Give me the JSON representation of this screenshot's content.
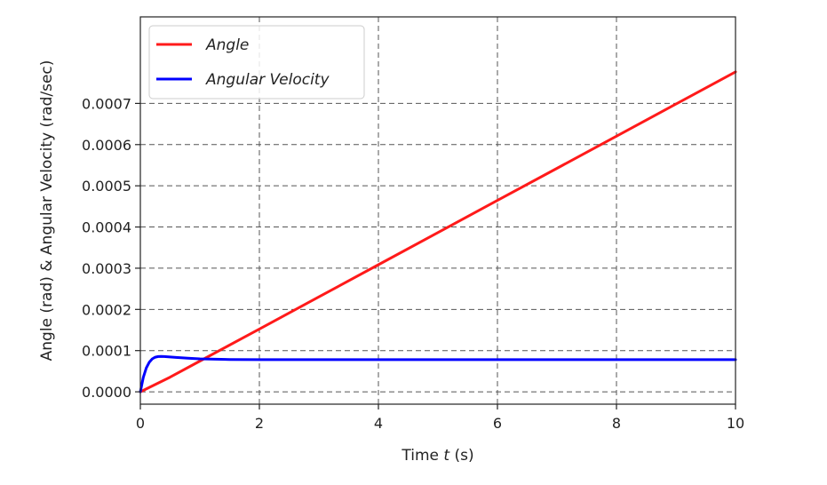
{
  "chart_data": {
    "type": "line",
    "xlabel_prefix": "Time ",
    "xlabel_var": "t",
    "xlabel_suffix": " (s)",
    "ylabel": "Angle (rad) &  Angular Velocity (rad/sec)",
    "xlim": [
      0,
      10
    ],
    "ylim": [
      -3e-05,
      0.00091
    ],
    "xticks": [
      0,
      2,
      4,
      6,
      8,
      10
    ],
    "xtick_labels": [
      "0",
      "2",
      "4",
      "6",
      "8",
      "10"
    ],
    "yticks": [
      0,
      0.0001,
      0.0002,
      0.0003,
      0.0004,
      0.0005,
      0.0006,
      0.0007
    ],
    "ytick_labels": [
      "0.0000",
      "0.0001",
      "0.0002",
      "0.0003",
      "0.0004",
      "0.0005",
      "0.0006",
      "0.0007"
    ],
    "grid": true,
    "legend_position": "upper-left",
    "series": [
      {
        "name": "Angle",
        "color": "#ff1a1a",
        "x": [
          0,
          0.5,
          1,
          2,
          3,
          4,
          5,
          6,
          7,
          8,
          9,
          10
        ],
        "y": [
          0,
          3.55e-05,
          7.45e-05,
          0.0001525,
          0.0002305,
          0.0003085,
          0.0003865,
          0.0004645,
          0.0005425,
          0.0006205,
          0.0006985,
          0.0007765
        ]
      },
      {
        "name": "Angular Velocity",
        "color": "#0000ff",
        "x": [
          0,
          0.05,
          0.1,
          0.15,
          0.2,
          0.25,
          0.3,
          0.35,
          0.4,
          0.5,
          0.6,
          0.8,
          1.0,
          1.5,
          2,
          3,
          4,
          6,
          8,
          10
        ],
        "y": [
          0,
          3.5e-05,
          5.8e-05,
          7.2e-05,
          8e-05,
          8.4e-05,
          8.55e-05,
          8.58e-05,
          8.55e-05,
          8.45e-05,
          8.35e-05,
          8.15e-05,
          8e-05,
          7.85e-05,
          7.8e-05,
          7.8e-05,
          7.8e-05,
          7.8e-05,
          7.8e-05,
          7.8e-05
        ]
      }
    ]
  }
}
